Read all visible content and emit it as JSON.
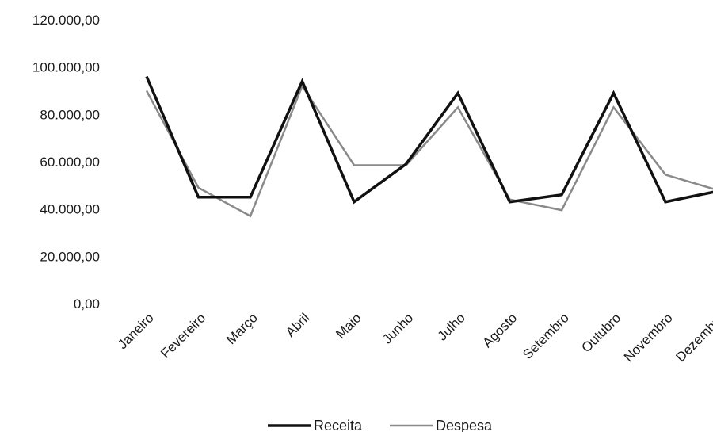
{
  "chart_data": {
    "type": "line",
    "categories": [
      "Janeiro",
      "Fevereiro",
      "Março",
      "Abril",
      "Maio",
      "Junho",
      "Julho",
      "Agosto",
      "Setembro",
      "Outubro",
      "Novembro",
      "Dezembro"
    ],
    "series": [
      {
        "name": "Receita",
        "values": [
          96000,
          45000,
          45000,
          94000,
          43000,
          59000,
          89000,
          43000,
          46000,
          89000,
          43000,
          47500
        ],
        "color": "#111111"
      },
      {
        "name": "Despesa",
        "values": [
          90000,
          49000,
          37000,
          92000,
          58500,
          58500,
          83000,
          44000,
          39500,
          83000,
          54500,
          48000
        ],
        "color": "#8a8a8a"
      }
    ],
    "ylim": [
      0,
      120000
    ],
    "yticks": [
      0,
      20000,
      40000,
      60000,
      80000,
      100000,
      120000
    ],
    "ytick_labels": [
      "0,00",
      "20.000,00",
      "40.000,00",
      "60.000,00",
      "80.000,00",
      "100.000,00",
      "120.000,00"
    ],
    "grid": false,
    "legend_position": "bottom"
  }
}
